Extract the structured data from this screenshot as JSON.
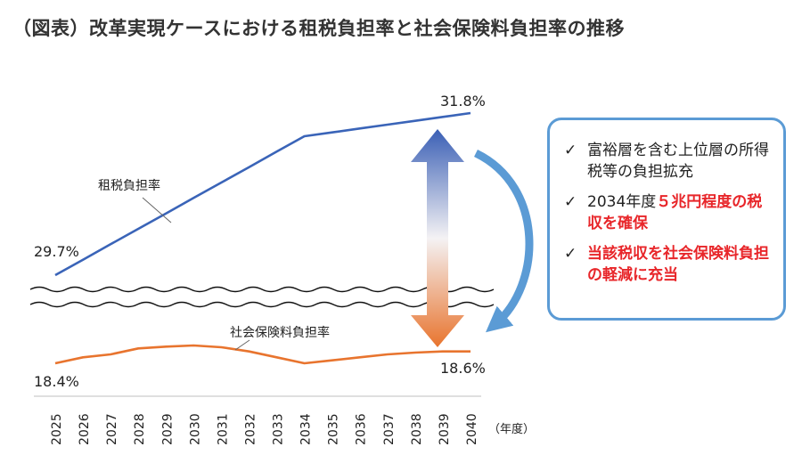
{
  "title": "（図表）改革実現ケースにおける租税負担率と社会保険料負担率の推移",
  "chart_data": {
    "type": "line",
    "x": [
      "2025",
      "2026",
      "2027",
      "2028",
      "2029",
      "2030",
      "2031",
      "2032",
      "2033",
      "2034",
      "2035",
      "2036",
      "2037",
      "2038",
      "2039",
      "2040"
    ],
    "xunit": "（年度）",
    "series": [
      {
        "name": "租税負担率",
        "color": "#3a64b8",
        "values": [
          29.7,
          29.9,
          30.1,
          30.3,
          30.5,
          30.7,
          30.9,
          31.1,
          31.3,
          31.5,
          31.55,
          31.6,
          31.65,
          31.7,
          31.75,
          31.8
        ],
        "start_label": "29.7%",
        "end_label": "31.8%"
      },
      {
        "name": "社会保険料負担率",
        "color": "#e8742e",
        "values": [
          18.4,
          18.5,
          18.55,
          18.65,
          18.68,
          18.7,
          18.67,
          18.6,
          18.5,
          18.4,
          18.45,
          18.5,
          18.55,
          18.58,
          18.6,
          18.6
        ],
        "start_label": "18.4%",
        "end_label": "18.6%"
      }
    ],
    "axis_break": true
  },
  "callout": {
    "border_color": "#5b9bd5",
    "bullets": [
      {
        "check": "✓",
        "parts": [
          {
            "text": "富裕層を含む上位層の所得税等の負担拡充",
            "style": "normal"
          }
        ]
      },
      {
        "check": "✓",
        "parts": [
          {
            "text": "2034年度",
            "style": "normal"
          },
          {
            "text": "５兆円程度の税収を確保",
            "style": "red"
          }
        ]
      },
      {
        "check": "✓",
        "parts": [
          {
            "text": "当該税収を社会保険料負担の軽減に充当",
            "style": "red"
          }
        ]
      }
    ]
  }
}
